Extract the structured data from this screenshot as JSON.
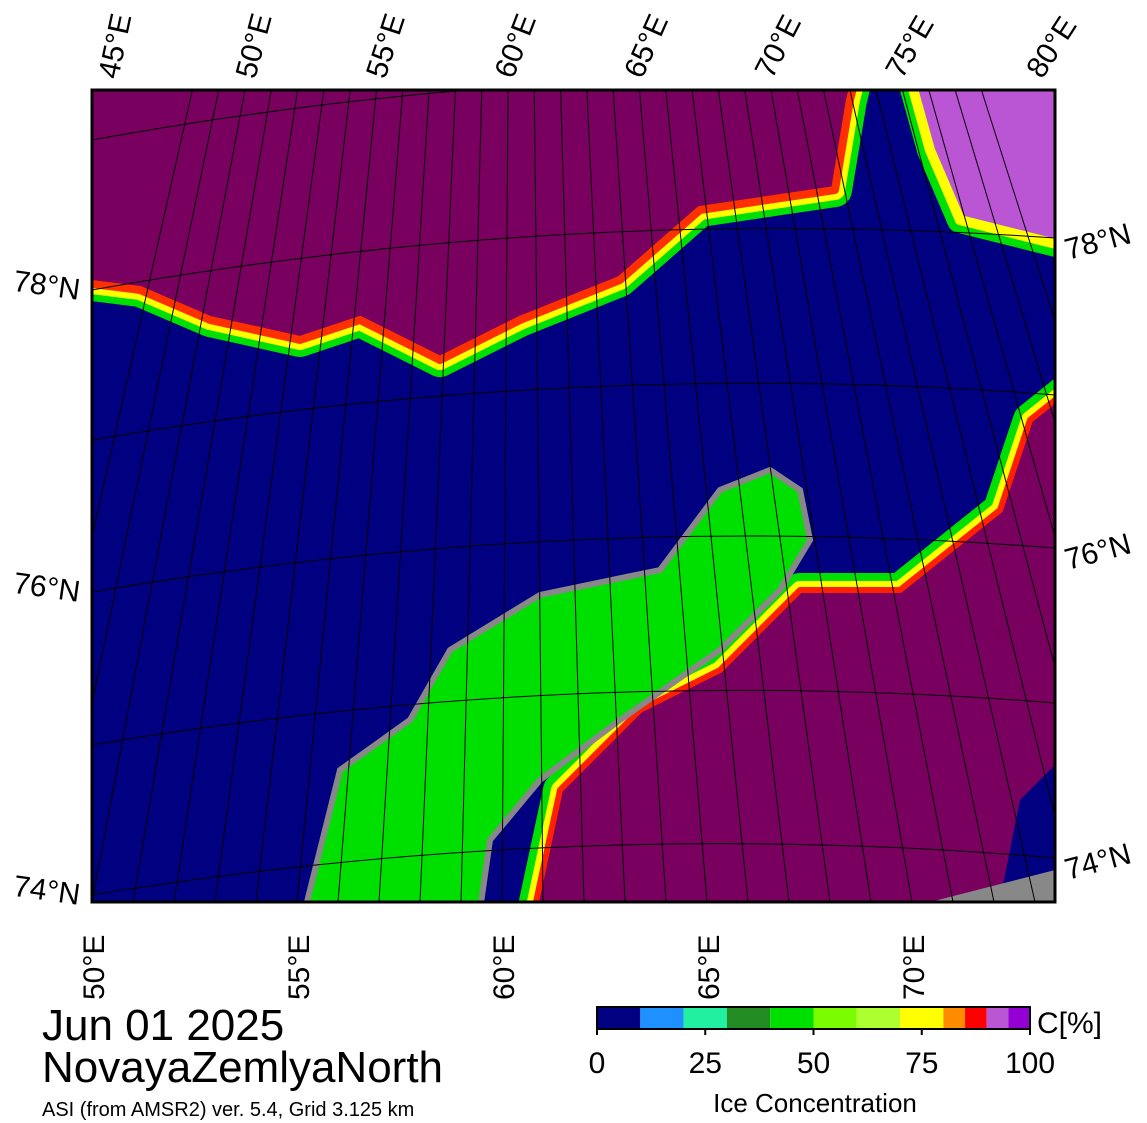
{
  "map": {
    "top_labels": [
      "45°E",
      "50°E",
      "55°E",
      "60°E",
      "65°E",
      "70°E",
      "75°E",
      "80°E"
    ],
    "bottom_labels": [
      "50°E",
      "55°E",
      "60°E",
      "65°E",
      "70°E"
    ],
    "left_labels": [
      "78°N",
      "76°N",
      "74°N"
    ],
    "right_labels": [
      "78°N",
      "76°N",
      "74°N"
    ]
  },
  "date": "Jun 01 2025",
  "region": "NovayaZemlyaNorth",
  "source": "ASI (from AMSR2) ver. 5.4,  Grid 3.125 km",
  "colorbar": {
    "unit": "C[%]",
    "label": "Ice Concentration",
    "bins": [
      0,
      10,
      20,
      30,
      40,
      50,
      60,
      70,
      80,
      85,
      90,
      95,
      100
    ],
    "colors": [
      "#000080",
      "#1e90ff",
      "#20f0a0",
      "#228b22",
      "#00e000",
      "#7cfc00",
      "#adff2f",
      "#ffff00",
      "#ff8c00",
      "#ff0000",
      "#ba55d3",
      "#9400d3"
    ],
    "ticks": [
      0,
      25,
      50,
      75,
      100
    ]
  }
}
